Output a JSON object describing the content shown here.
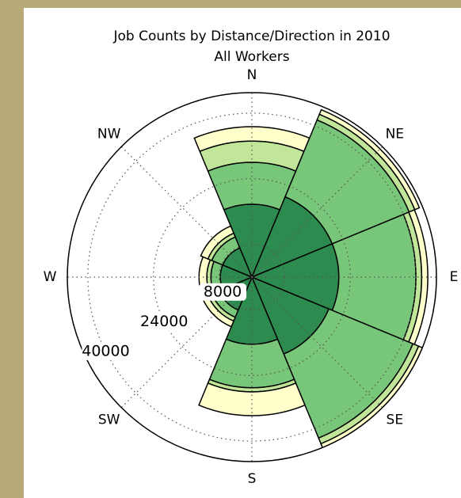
{
  "chart_data": {
    "type": "polar_bar",
    "title": "Job Counts by Distance/Direction in 2010",
    "subtitle": "All Workers",
    "categories": [
      "N",
      "NE",
      "E",
      "SE",
      "S",
      "SW",
      "W",
      "NW"
    ],
    "series": [
      {
        "color": "#2e8b4f",
        "values": [
          17800,
          21200,
          21200,
          20300,
          16400,
          8700,
          7700,
          7700
        ]
      },
      {
        "color": "#78c679",
        "values": [
          10200,
          20300,
          18800,
          22200,
          10600,
          1900,
          2300,
          2900
        ]
      },
      {
        "color": "#c2e699",
        "values": [
          5200,
          1500,
          1400,
          1500,
          1000,
          1000,
          1000,
          1000
        ]
      },
      {
        "color": "#ffffcc",
        "values": [
          3500,
          1200,
          1500,
          1000,
          5800,
          1500,
          1900,
          1900
        ]
      }
    ],
    "rlim": [
      0,
      45000
    ],
    "rticks": [
      8000,
      24000,
      40000
    ],
    "grid": true
  }
}
